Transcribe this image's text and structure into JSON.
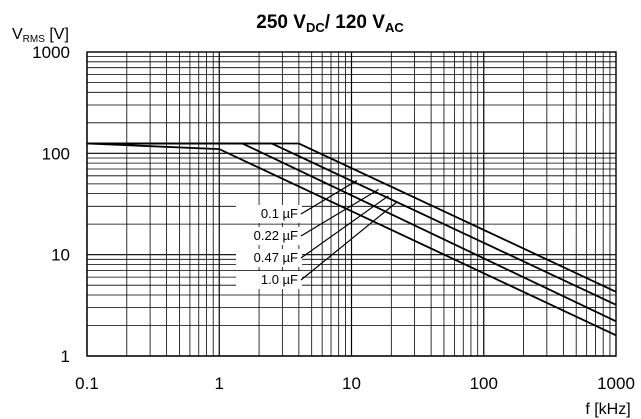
{
  "chart_data": {
    "type": "line",
    "title": {
      "prefix": "250 V",
      "sub1": "DC",
      "middle": "/ 120 V",
      "sub2": "AC"
    },
    "ylabel": {
      "main_start": "V",
      "sub": "RMS",
      "main_end": " [V]"
    },
    "xlabel": "f [kHz]",
    "x_scale": "log",
    "y_scale": "log",
    "xlim": [
      0.1,
      1000
    ],
    "ylim": [
      1,
      1000
    ],
    "x_ticks": [
      "0.1",
      "1",
      "10",
      "100",
      "1000"
    ],
    "y_ticks": [
      "1",
      "10",
      "100",
      "1000"
    ],
    "grid": true,
    "series": [
      {
        "name": "0.1 µF",
        "points": [
          [
            0.1,
            125
          ],
          [
            4.0,
            125
          ],
          [
            1000,
            4.3
          ]
        ]
      },
      {
        "name": "0.22 µF",
        "points": [
          [
            0.1,
            125
          ],
          [
            2.5,
            125
          ],
          [
            1000,
            3.2
          ]
        ]
      },
      {
        "name": "0.47 µF",
        "points": [
          [
            0.1,
            125
          ],
          [
            1.5,
            125
          ],
          [
            1000,
            2.2
          ]
        ]
      },
      {
        "name": "1.0 µF",
        "points": [
          [
            0.1,
            125
          ],
          [
            1.0,
            110
          ],
          [
            1000,
            1.6
          ]
        ]
      }
    ],
    "legend": {
      "placement": "center-left",
      "label_points": [
        [
          11,
          54
        ],
        [
          16,
          44
        ],
        [
          19,
          38
        ],
        [
          22,
          33
        ]
      ]
    }
  }
}
